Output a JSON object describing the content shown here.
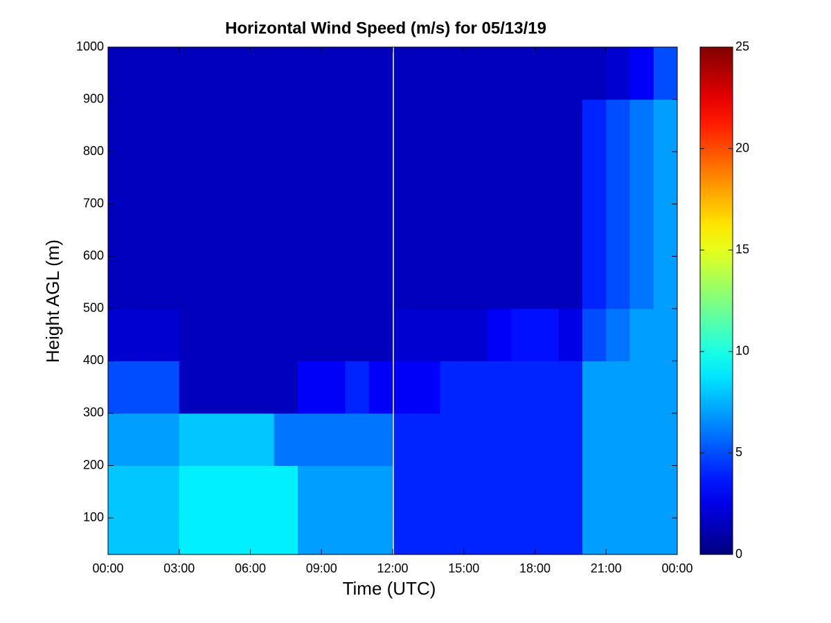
{
  "chart_data": {
    "type": "heatmap",
    "title": "Horizontal Wind Speed (m/s) for 05/13/19",
    "x_label": "Time (UTC)",
    "y_label": "Height AGL (m)",
    "xbins": [
      0,
      1,
      2,
      3,
      4,
      5,
      6,
      7,
      8,
      9,
      10,
      11,
      12,
      13,
      14,
      15,
      16,
      17,
      18,
      19,
      20,
      21,
      22,
      23,
      24
    ],
    "ybins": [
      30,
      100,
      200,
      300,
      400,
      500,
      600,
      700,
      800,
      900,
      1000
    ],
    "z": [
      [
        8,
        8,
        8,
        9,
        9,
        9,
        9,
        9,
        7,
        7,
        7,
        7,
        4,
        4,
        4,
        4,
        4,
        4,
        4,
        4,
        7,
        7,
        7,
        7
      ],
      [
        8,
        8,
        8,
        9,
        9,
        9,
        9,
        9,
        7,
        7,
        7,
        7,
        4,
        4,
        4,
        4,
        4,
        4,
        4,
        4,
        7,
        7,
        7,
        7
      ],
      [
        7,
        7,
        7,
        8,
        8,
        8,
        8,
        6,
        6,
        6,
        6,
        6,
        4,
        4,
        4,
        4,
        4,
        4,
        4,
        4,
        7,
        7,
        7,
        7
      ],
      [
        5,
        5,
        5,
        1.5,
        1.5,
        1.5,
        1.5,
        1.5,
        3,
        3,
        4,
        3,
        3,
        3,
        4,
        4,
        4,
        4,
        4,
        4,
        7,
        7,
        7,
        7
      ],
      [
        2,
        2,
        2,
        1.5,
        1.5,
        1.5,
        1.5,
        1.5,
        1.5,
        1.5,
        1.5,
        1.5,
        2,
        2,
        2,
        2,
        3,
        3.5,
        3.5,
        2.5,
        5,
        6,
        7,
        7
      ],
      [
        1.5,
        1.5,
        1.5,
        1.5,
        1.5,
        1.5,
        1.5,
        1.5,
        1.5,
        1.5,
        1.5,
        1.5,
        1.5,
        1.5,
        1.5,
        1.5,
        1.5,
        1.5,
        1.5,
        1.5,
        4,
        5,
        6,
        7
      ],
      [
        1.5,
        1.5,
        1.5,
        1.5,
        1.5,
        1.5,
        1.5,
        1.5,
        1.5,
        1.5,
        1.5,
        1.5,
        1.5,
        1.5,
        1.5,
        1.5,
        1.5,
        1.5,
        1.5,
        1.5,
        4,
        5,
        6,
        7
      ],
      [
        1.5,
        1.5,
        1.5,
        1.5,
        1.5,
        1.5,
        1.5,
        1.5,
        1.5,
        1.5,
        1.5,
        1.5,
        1.5,
        1.5,
        1.5,
        1.5,
        1.5,
        1.5,
        1.5,
        1.5,
        4,
        5,
        6,
        7
      ],
      [
        1.5,
        1.5,
        1.5,
        1.5,
        1.5,
        1.5,
        1.5,
        1.5,
        1.5,
        1.5,
        1.5,
        1.5,
        1.5,
        1.5,
        1.5,
        1.5,
        1.5,
        1.5,
        1.5,
        1.5,
        4,
        5,
        6,
        7
      ],
      [
        1.5,
        1.5,
        1.5,
        1.5,
        1.5,
        1.5,
        1.5,
        1.5,
        1.5,
        1.5,
        1.5,
        1.5,
        1.5,
        1.5,
        1.5,
        1.5,
        1.5,
        1.5,
        1.5,
        1.5,
        1.5,
        2,
        3,
        5
      ]
    ],
    "xlim": [
      0,
      24
    ],
    "xticks": [
      {
        "value": 0,
        "label": "00:00"
      },
      {
        "value": 3,
        "label": "03:00"
      },
      {
        "value": 6,
        "label": "06:00"
      },
      {
        "value": 9,
        "label": "09:00"
      },
      {
        "value": 12,
        "label": "12:00"
      },
      {
        "value": 15,
        "label": "15:00"
      },
      {
        "value": 18,
        "label": "18:00"
      },
      {
        "value": 21,
        "label": "21:00"
      },
      {
        "value": 24,
        "label": "00:00"
      }
    ],
    "ylim": [
      30,
      1000
    ],
    "yticks": [
      100,
      200,
      300,
      400,
      500,
      600,
      700,
      800,
      900,
      1000
    ],
    "clim": [
      0,
      25
    ],
    "cticks": [
      0,
      5,
      10,
      15,
      20,
      25
    ],
    "colormap": "jet"
  }
}
